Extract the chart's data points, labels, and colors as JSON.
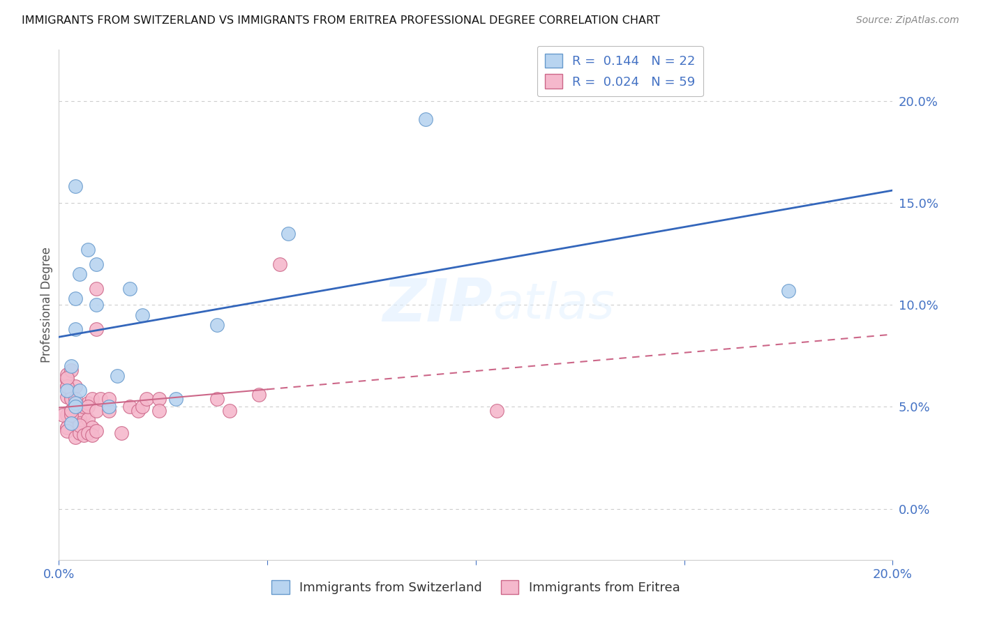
{
  "title": "IMMIGRANTS FROM SWITZERLAND VS IMMIGRANTS FROM ERITREA PROFESSIONAL DEGREE CORRELATION CHART",
  "source": "Source: ZipAtlas.com",
  "ylabel": "Professional Degree",
  "xlim": [
    0.0,
    0.2
  ],
  "ylim": [
    -0.025,
    0.225
  ],
  "ytick_values": [
    0.0,
    0.05,
    0.1,
    0.15,
    0.2
  ],
  "xtick_values": [
    0.0,
    0.05,
    0.1,
    0.15,
    0.2
  ],
  "xtick_labels": [
    "0.0%",
    "",
    "",
    "",
    "20.0%"
  ],
  "watermark": "ZIPatlas",
  "swiss_color": "#b8d4f0",
  "swiss_edge": "#6699cc",
  "eritrea_color": "#f5b8cc",
  "eritrea_edge": "#cc6688",
  "swiss_line_color": "#3366bb",
  "eritrea_line_color": "#cc6688",
  "swiss_r": 0.144,
  "swiss_n": 22,
  "eritrea_r": 0.024,
  "eritrea_n": 59,
  "swiss_x": [
    0.005,
    0.007,
    0.009,
    0.004,
    0.017,
    0.009,
    0.02,
    0.004,
    0.003,
    0.055,
    0.002,
    0.028,
    0.005,
    0.004,
    0.014,
    0.038,
    0.088,
    0.012,
    0.004,
    0.175,
    0.003,
    0.004
  ],
  "swiss_y": [
    0.115,
    0.127,
    0.12,
    0.103,
    0.108,
    0.1,
    0.095,
    0.088,
    0.07,
    0.135,
    0.058,
    0.054,
    0.058,
    0.052,
    0.065,
    0.09,
    0.191,
    0.05,
    0.05,
    0.107,
    0.042,
    0.158
  ],
  "eritrea_x": [
    0.004,
    0.002,
    0.002,
    0.002,
    0.003,
    0.005,
    0.006,
    0.001,
    0.002,
    0.002,
    0.002,
    0.003,
    0.009,
    0.009,
    0.002,
    0.002,
    0.003,
    0.003,
    0.004,
    0.004,
    0.004,
    0.005,
    0.005,
    0.006,
    0.006,
    0.007,
    0.007,
    0.007,
    0.008,
    0.008,
    0.002,
    0.002,
    0.003,
    0.003,
    0.003,
    0.004,
    0.005,
    0.005,
    0.006,
    0.007,
    0.007,
    0.008,
    0.009,
    0.009,
    0.01,
    0.012,
    0.012,
    0.015,
    0.017,
    0.019,
    0.02,
    0.021,
    0.024,
    0.024,
    0.038,
    0.041,
    0.048,
    0.053,
    0.105
  ],
  "eritrea_y": [
    0.05,
    0.046,
    0.04,
    0.055,
    0.055,
    0.05,
    0.046,
    0.046,
    0.06,
    0.063,
    0.066,
    0.068,
    0.088,
    0.108,
    0.04,
    0.038,
    0.048,
    0.058,
    0.035,
    0.048,
    0.06,
    0.044,
    0.042,
    0.04,
    0.05,
    0.038,
    0.044,
    0.052,
    0.04,
    0.054,
    0.06,
    0.064,
    0.046,
    0.054,
    0.048,
    0.054,
    0.037,
    0.041,
    0.036,
    0.037,
    0.05,
    0.036,
    0.038,
    0.048,
    0.054,
    0.048,
    0.054,
    0.037,
    0.05,
    0.048,
    0.05,
    0.054,
    0.054,
    0.048,
    0.054,
    0.048,
    0.056,
    0.12,
    0.048
  ],
  "background_color": "#ffffff",
  "grid_color": "#cccccc",
  "axis_color": "#4472c4",
  "title_color": "#111111",
  "title_fontsize": 11.5
}
